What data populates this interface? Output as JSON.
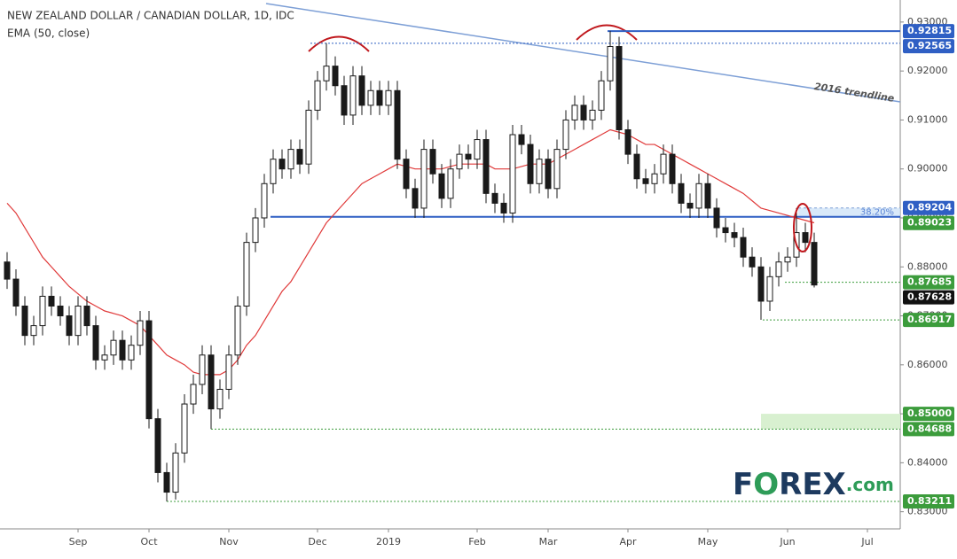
{
  "chart_data": {
    "type": "candlestick",
    "title": "NEW ZEALAND DOLLAR / CANADIAN DOLLAR, 1D, IDC",
    "subtitle": "EMA (50, close)",
    "categories": [
      null,
      null,
      null,
      null,
      null,
      null,
      null,
      null,
      "Sep",
      null,
      null,
      null,
      null,
      null,
      null,
      null,
      "Oct",
      null,
      null,
      null,
      null,
      null,
      null,
      null,
      null,
      "Nov",
      null,
      null,
      null,
      null,
      null,
      null,
      null,
      null,
      null,
      "Dec",
      null,
      null,
      null,
      null,
      null,
      null,
      null,
      "2019",
      null,
      null,
      null,
      null,
      null,
      null,
      null,
      null,
      null,
      "Feb",
      null,
      null,
      null,
      null,
      null,
      null,
      null,
      "Mar",
      null,
      null,
      null,
      null,
      null,
      null,
      null,
      null,
      "Apr",
      null,
      null,
      null,
      null,
      null,
      null,
      null,
      null,
      "May",
      null,
      null,
      null,
      null,
      null,
      null,
      null,
      null,
      "Jun",
      null,
      null,
      null,
      null,
      null,
      null,
      null,
      null,
      "Jul",
      null,
      null,
      null
    ],
    "open": [
      0.881,
      0.8775,
      0.872,
      0.866,
      0.868,
      0.874,
      0.872,
      0.87,
      0.866,
      0.872,
      0.868,
      0.861,
      0.862,
      0.865,
      0.861,
      0.864,
      0.869,
      0.849,
      0.838,
      0.834,
      0.842,
      0.852,
      0.856,
      0.862,
      0.851,
      0.855,
      0.862,
      0.872,
      0.885,
      0.89,
      0.897,
      0.902,
      0.9,
      0.904,
      0.901,
      0.912,
      0.918,
      0.921,
      0.917,
      0.911,
      0.919,
      0.913,
      0.916,
      0.913,
      0.916,
      0.902,
      0.896,
      0.892,
      0.904,
      0.899,
      0.894,
      0.9,
      0.903,
      0.902,
      0.906,
      0.895,
      0.893,
      0.891,
      0.907,
      0.905,
      0.897,
      0.902,
      0.896,
      0.904,
      0.91,
      0.913,
      0.91,
      0.912,
      0.918,
      0.925,
      0.908,
      0.903,
      0.898,
      0.897,
      0.899,
      0.903,
      0.897,
      0.893,
      0.892,
      0.897,
      0.892,
      0.888,
      0.887,
      0.886,
      0.882,
      0.88,
      0.873,
      0.878,
      0.881,
      0.882,
      0.887,
      0.885,
      null,
      null,
      null,
      null,
      null,
      null,
      null,
      null,
      null
    ],
    "high": [
      0.883,
      0.8795,
      0.874,
      0.87,
      0.876,
      0.876,
      0.874,
      0.872,
      0.874,
      0.874,
      0.87,
      0.864,
      0.867,
      0.867,
      0.866,
      0.871,
      0.871,
      0.851,
      0.84,
      0.844,
      0.854,
      0.858,
      0.864,
      0.864,
      0.857,
      0.864,
      0.874,
      0.887,
      0.892,
      0.899,
      0.904,
      0.904,
      0.906,
      0.906,
      0.914,
      0.92,
      0.9257,
      0.923,
      0.919,
      0.921,
      0.921,
      0.918,
      0.918,
      0.918,
      0.918,
      0.904,
      0.898,
      0.906,
      0.906,
      0.901,
      0.902,
      0.905,
      0.905,
      0.908,
      0.908,
      0.897,
      0.895,
      0.909,
      0.909,
      0.907,
      0.904,
      0.904,
      0.906,
      0.912,
      0.915,
      0.915,
      0.914,
      0.92,
      0.9282,
      0.927,
      0.91,
      0.905,
      0.9,
      0.901,
      0.905,
      0.905,
      0.899,
      0.895,
      0.899,
      0.899,
      0.894,
      0.89,
      0.889,
      0.888,
      0.884,
      0.882,
      0.88,
      0.883,
      0.884,
      0.892,
      0.889,
      0.887,
      null,
      null,
      null,
      null,
      null,
      null,
      null,
      null,
      null
    ],
    "low": [
      0.8755,
      0.87,
      0.864,
      0.864,
      0.866,
      0.87,
      0.868,
      0.864,
      0.864,
      0.866,
      0.859,
      0.859,
      0.86,
      0.859,
      0.859,
      0.862,
      0.847,
      0.836,
      0.8321,
      0.8325,
      0.84,
      0.85,
      0.854,
      0.8469,
      0.849,
      0.853,
      0.86,
      0.87,
      0.883,
      0.888,
      0.895,
      0.898,
      0.898,
      0.899,
      0.899,
      0.91,
      0.916,
      0.915,
      0.909,
      0.909,
      0.911,
      0.911,
      0.911,
      0.911,
      0.9,
      0.894,
      0.89,
      0.89,
      0.897,
      0.892,
      0.892,
      0.898,
      0.9,
      0.9,
      0.893,
      0.891,
      0.889,
      0.889,
      0.903,
      0.895,
      0.895,
      0.894,
      0.894,
      0.902,
      0.908,
      0.908,
      0.908,
      0.91,
      0.916,
      0.906,
      0.901,
      0.896,
      0.895,
      0.895,
      0.897,
      0.895,
      0.891,
      0.89,
      0.89,
      0.89,
      0.886,
      0.885,
      0.884,
      0.88,
      0.878,
      0.8692,
      0.871,
      0.876,
      0.879,
      0.88,
      0.883,
      0.8758,
      null,
      null,
      null,
      null,
      null,
      null,
      null,
      null,
      null
    ],
    "close": [
      0.8775,
      0.872,
      0.866,
      0.868,
      0.874,
      0.872,
      0.87,
      0.866,
      0.872,
      0.868,
      0.861,
      0.862,
      0.865,
      0.861,
      0.864,
      0.869,
      0.849,
      0.838,
      0.834,
      0.842,
      0.852,
      0.856,
      0.862,
      0.851,
      0.855,
      0.862,
      0.872,
      0.885,
      0.89,
      0.897,
      0.902,
      0.9,
      0.904,
      0.901,
      0.912,
      0.918,
      0.921,
      0.917,
      0.911,
      0.919,
      0.913,
      0.916,
      0.913,
      0.916,
      0.902,
      0.896,
      0.892,
      0.904,
      0.899,
      0.894,
      0.9,
      0.903,
      0.902,
      0.906,
      0.895,
      0.893,
      0.891,
      0.907,
      0.905,
      0.897,
      0.902,
      0.896,
      0.904,
      0.91,
      0.913,
      0.91,
      0.912,
      0.918,
      0.925,
      0.908,
      0.903,
      0.898,
      0.897,
      0.899,
      0.903,
      0.897,
      0.893,
      0.892,
      0.897,
      0.892,
      0.888,
      0.887,
      0.886,
      0.882,
      0.88,
      0.873,
      0.878,
      0.881,
      0.882,
      0.887,
      0.885,
      0.8763,
      null,
      null,
      null,
      null,
      null,
      null,
      null,
      null,
      null
    ],
    "up_color": "#ffffff",
    "down_color": "#1a1a1a",
    "ema": {
      "color": "#e03a3a",
      "values": [
        0.893,
        0.891,
        0.888,
        0.885,
        0.882,
        0.88,
        0.878,
        0.876,
        0.8745,
        0.873,
        0.872,
        0.871,
        0.8705,
        0.87,
        0.869,
        0.868,
        0.866,
        0.864,
        0.862,
        0.861,
        0.86,
        0.8585,
        0.858,
        0.858,
        0.858,
        0.859,
        0.861,
        0.864,
        0.866,
        0.869,
        0.872,
        0.875,
        0.877,
        0.88,
        0.883,
        0.886,
        0.889,
        0.891,
        0.893,
        0.895,
        0.897,
        0.898,
        0.899,
        0.9,
        0.901,
        0.9005,
        0.9,
        0.9,
        0.9,
        0.9,
        0.9005,
        0.901,
        0.901,
        0.901,
        0.901,
        0.9,
        0.9,
        0.9,
        0.9005,
        0.901,
        0.901,
        0.901,
        0.902,
        0.903,
        0.904,
        0.905,
        0.906,
        0.907,
        0.908,
        0.9075,
        0.907,
        0.906,
        0.905,
        0.905,
        0.904,
        0.903,
        0.902,
        0.901,
        0.9,
        0.899,
        0.898,
        0.897,
        0.896,
        0.895,
        0.8935,
        0.892,
        0.8915,
        0.891,
        0.8905,
        0.89,
        0.8895,
        0.889,
        null,
        null,
        null,
        null,
        null,
        null,
        null,
        null,
        null
      ]
    },
    "ylim": [
      0.8265,
      0.9345
    ],
    "yticks": [
      {
        "value": 0.83,
        "label": "0.83000"
      },
      {
        "value": 0.84,
        "label": "0.84000"
      },
      {
        "value": 0.85,
        "label": "0.85000"
      },
      {
        "value": 0.86,
        "label": "0.86000"
      },
      {
        "value": 0.87,
        "label": "0.87000"
      },
      {
        "value": 0.88,
        "label": "0.88000"
      },
      {
        "value": 0.89,
        "label": "0.89000"
      },
      {
        "value": 0.9,
        "label": "0.90000"
      },
      {
        "value": 0.91,
        "label": "0.91000"
      },
      {
        "value": 0.92,
        "label": "0.92000"
      },
      {
        "value": 0.93,
        "label": "0.93000"
      }
    ],
    "levels": [
      {
        "value": 0.92815,
        "color": "#2f5fc4"
      },
      {
        "value": 0.92565,
        "color": "#2f5fc4"
      },
      {
        "value": 0.89204,
        "color": "#2f5fc4"
      },
      {
        "value": 0.89023,
        "color": "#3c9c3c"
      },
      {
        "value": 0.87685,
        "color": "#3c9c3c"
      },
      {
        "value": 0.87628,
        "color": "#111111"
      },
      {
        "value": 0.86917,
        "color": "#3c9c3c"
      },
      {
        "value": 0.85,
        "label": "0.85000",
        "color": "#3c9c3c"
      },
      {
        "value": 0.84688,
        "color": "#3c9c3c"
      },
      {
        "value": 0.83211,
        "color": "#3c9c3c"
      }
    ],
    "trendline_label": "2016 trendline",
    "fib_label": "38.20%"
  },
  "logo": {
    "f": "F",
    "o": "O",
    "rex": "REX",
    "com": ".com"
  }
}
